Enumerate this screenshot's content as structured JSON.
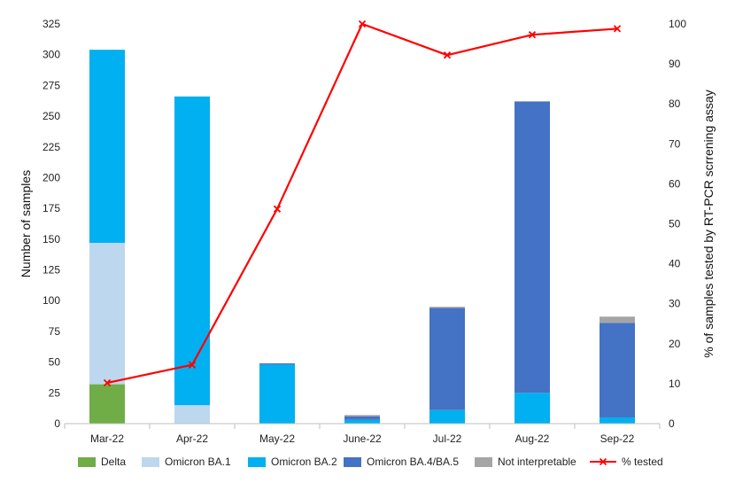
{
  "chart_data": {
    "type": "bar",
    "stacked": true,
    "categories": [
      "Mar-22",
      "Apr-22",
      "May-22",
      "June-22",
      "Jul-22",
      "Aug-22",
      "Sep-22"
    ],
    "series": [
      {
        "name": "Delta",
        "color": "#70ad47",
        "values": [
          32,
          0,
          0,
          0,
          0,
          0,
          0
        ]
      },
      {
        "name": "Omicron BA.1",
        "color": "#bdd7ee",
        "values": [
          115,
          15,
          0,
          0,
          0,
          0,
          0
        ]
      },
      {
        "name": "Omicron BA.2",
        "color": "#00b0f0",
        "values": [
          157,
          251,
          48,
          3,
          11,
          25,
          5
        ]
      },
      {
        "name": "Omicron BA.4/BA.5",
        "color": "#4472c4",
        "values": [
          0,
          0,
          1,
          3,
          83,
          237,
          77
        ]
      },
      {
        "name": "Not interpretable",
        "color": "#a5a5a5",
        "values": [
          0,
          0,
          0,
          1,
          1,
          0,
          5
        ]
      }
    ],
    "line": {
      "name": "% tested",
      "color": "#ff0000",
      "values": [
        10.2,
        14.7,
        53.7,
        100,
        92.2,
        97.3,
        98.8
      ]
    },
    "ylabel": "Number of samples",
    "y2label": "% of samples tested by RT-PCR scrrening assay",
    "ylim": [
      0,
      325
    ],
    "y_ticks": [
      0,
      25,
      50,
      75,
      100,
      125,
      150,
      175,
      200,
      225,
      250,
      275,
      300,
      325
    ],
    "y2lim": [
      0,
      100
    ],
    "y2_ticks": [
      0,
      10,
      20,
      30,
      40,
      50,
      60,
      70,
      80,
      90,
      100
    ],
    "grid": false,
    "legend_position": "bottom"
  }
}
